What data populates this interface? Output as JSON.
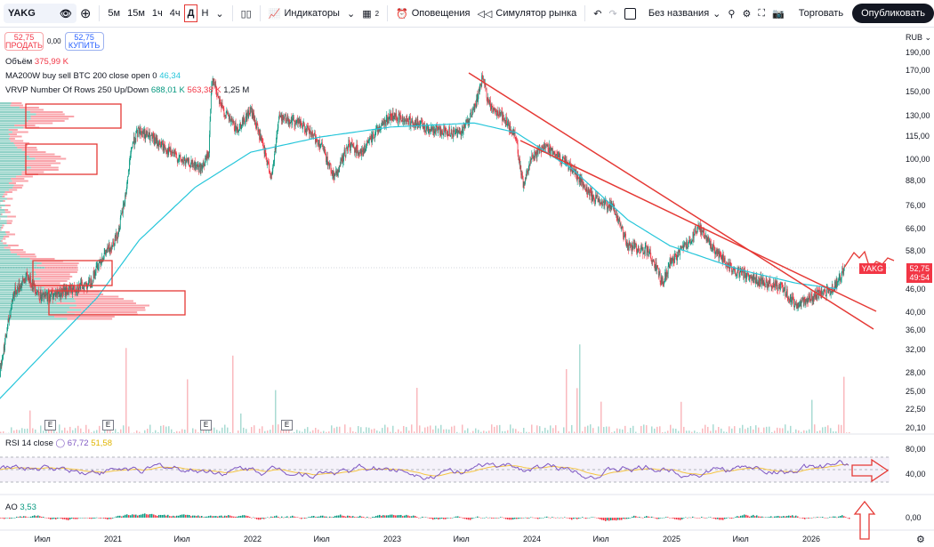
{
  "toolbar": {
    "symbol": "YAKG",
    "timeframes": [
      "5м",
      "15м",
      "1ч",
      "4ч",
      "Д",
      "Н"
    ],
    "active_timeframe": "Д",
    "indicators": "Индикаторы",
    "layouts_count": "2",
    "alerts": "Оповещения",
    "replay": "Симулятор рынка",
    "layout_name": "Без названия",
    "trade": "Торговать",
    "publish": "Опубликовать"
  },
  "trade_panel": {
    "sell_price": "52,75",
    "sell_label": "ПРОДАТЬ",
    "spread": "0,00",
    "buy_price": "52,75",
    "buy_label": "КУПИТЬ"
  },
  "legend": {
    "volume_label": "Объём",
    "volume_value": "375,99 K",
    "ma_label": "MA200W buy sell BTC 200 close open 0",
    "ma_value": "46,34",
    "vrvp_label": "VRVP Number Of Rows 250 Up/Down",
    "vrvp_up": "688,01 K",
    "vrvp_down": "563,38 K",
    "vrvp_total": "1,25 M"
  },
  "rsi": {
    "label": "RSI 14 close",
    "value": "67,72",
    "ma_value": "51,58",
    "axis": [
      "80,00",
      "40,00"
    ]
  },
  "ao": {
    "label": "AO",
    "value": "3,53",
    "axis": [
      "0,00"
    ]
  },
  "price_axis": {
    "currency": "RUB",
    "ticks": [
      190,
      170,
      150,
      130,
      115,
      100,
      88,
      76,
      66,
      58,
      46,
      40,
      36,
      32,
      28,
      25,
      22.5,
      20.1
    ],
    "tick_labels": [
      "190,00",
      "170,00",
      "150,00",
      "130,00",
      "115,00",
      "100,00",
      "88,00",
      "76,00",
      "66,00",
      "58,00",
      "46,00",
      "40,00",
      "36,00",
      "32,00",
      "28,00",
      "25,00",
      "22,50",
      "20,10"
    ],
    "scale": "log"
  },
  "price_label": {
    "symbol": "YAKG",
    "price": "52,75",
    "countdown": "49:54"
  },
  "time_axis": {
    "labels": [
      "Июл",
      "2021",
      "Июл",
      "2022",
      "Июл",
      "2023",
      "Июл",
      "2024",
      "Июл",
      "2025",
      "Июл",
      "2026"
    ],
    "positions": [
      2020.5,
      2021,
      2021.5,
      2022,
      2022.5,
      2023,
      2023.5,
      2024,
      2024.5,
      2025,
      2025.5,
      2026
    ]
  },
  "earnings_markers": [
    "E",
    "E",
    "E",
    "E"
  ],
  "colors": {
    "up": "#089981",
    "down": "#f23645",
    "ma": "#26c6da",
    "rsi": "#7e57c2",
    "rsi_ma": "#f5c542",
    "annotation": "#e53935"
  },
  "chart_data": {
    "type": "line",
    "series": [
      {
        "name": "YAKG",
        "x": [
          2020.2,
          2020.3,
          2020.4,
          2020.5,
          2020.7,
          2020.85,
          2020.92,
          2021.0,
          2021.05,
          2021.1,
          2021.15,
          2021.2,
          2021.35,
          2021.5,
          2021.65,
          2021.7,
          2021.72,
          2021.8,
          2021.9,
          2022.0,
          2022.05,
          2022.15,
          2022.2,
          2022.35,
          2022.5,
          2022.6,
          2022.7,
          2022.8,
          2022.9,
          2023.0,
          2023.1,
          2023.3,
          2023.5,
          2023.6,
          2023.66,
          2023.7,
          2023.8,
          2023.9,
          2023.95,
          2024.0,
          2024.1,
          2024.3,
          2024.45,
          2024.6,
          2024.7,
          2024.85,
          2024.95,
          2025.0,
          2025.15,
          2025.2,
          2025.3,
          2025.45,
          2025.6,
          2025.8,
          2025.9,
          2026.0,
          2026.15,
          2026.2,
          2026.25
        ],
        "y": [
          28,
          45,
          50,
          44,
          46,
          48,
          55,
          60,
          65,
          80,
          110,
          120,
          110,
          100,
          95,
          105,
          165,
          135,
          120,
          135,
          120,
          90,
          130,
          125,
          110,
          90,
          110,
          105,
          120,
          130,
          128,
          120,
          118,
          135,
          165,
          140,
          130,
          115,
          85,
          100,
          110,
          95,
          80,
          75,
          60,
          58,
          48,
          54,
          62,
          68,
          60,
          52,
          49,
          47,
          42,
          44,
          46,
          48,
          52.75
        ]
      },
      {
        "name": "MA200W",
        "x": [
          2020.2,
          2020.6,
          2020.9,
          2021.2,
          2021.6,
          2022.0,
          2022.5,
          2023.0,
          2023.6,
          2023.9,
          2024.3,
          2024.7,
          2025.0,
          2025.5,
          2025.9,
          2026.2
        ],
        "y": [
          24,
          34,
          44,
          62,
          85,
          105,
          115,
          122,
          125,
          118,
          95,
          70,
          60,
          52,
          48,
          46.34
        ]
      }
    ]
  }
}
